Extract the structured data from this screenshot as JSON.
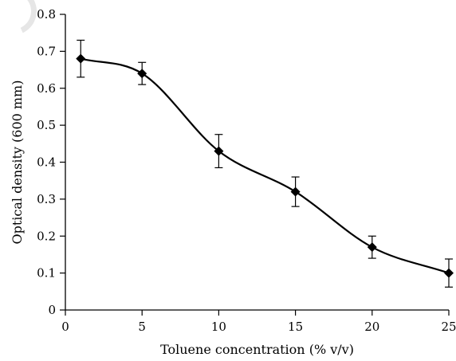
{
  "chart_data": {
    "type": "line",
    "title": "",
    "xlabel": "Toluene concentration (% v/v)",
    "ylabel": "Optical density (600 mm)",
    "xlim": [
      0,
      25
    ],
    "ylim": [
      0,
      0.8
    ],
    "xticks": [
      0,
      5,
      10,
      15,
      20,
      25
    ],
    "yticks": [
      0,
      0.1,
      0.2,
      0.3,
      0.4,
      0.5,
      0.6,
      0.7,
      0.8
    ],
    "xtick_labels": [
      "0",
      "5",
      "10",
      "15",
      "20",
      "25"
    ],
    "ytick_labels": [
      "0",
      "0.1",
      "0.2",
      "0.3",
      "0.4",
      "0.5",
      "0.6",
      "0.7",
      "0.8"
    ],
    "grid": false,
    "smooth": true,
    "marker": "diamond",
    "series": [
      {
        "x": [
          1,
          5,
          10,
          15,
          20,
          25
        ],
        "y": [
          0.68,
          0.64,
          0.43,
          0.32,
          0.17,
          0.1
        ],
        "error": [
          0.05,
          0.03,
          0.045,
          0.04,
          0.03,
          0.038
        ]
      }
    ]
  }
}
